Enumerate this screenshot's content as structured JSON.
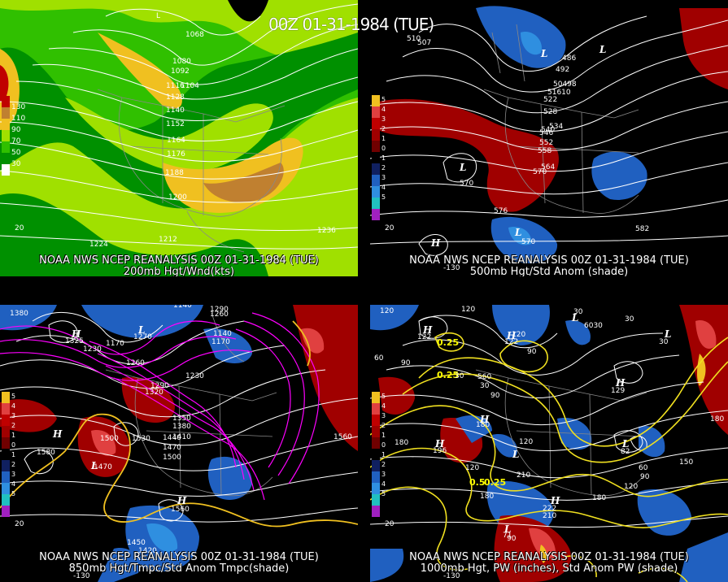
{
  "figure_title": "00Z 01-31-1984 (TUE)",
  "panels": [
    {
      "caption1": "NOAA NWS NCEP REANALYSIS 00Z 01-31-1984 (TUE)",
      "caption2": "200mb Hgt/Wnd(kts)",
      "legend": [
        "130",
        "110",
        "90",
        "70",
        "50",
        "30"
      ],
      "contours": [
        "1068",
        "1068",
        "1080",
        "1092",
        "1104",
        "1116",
        "1128",
        "1140",
        "1152",
        "1164",
        "1176",
        "1188",
        "1200",
        "1212",
        "1224",
        "1236",
        "20"
      ]
    },
    {
      "caption1": "NOAA NWS NCEP REANALYSIS 00Z 01-31-1984 (TUE)",
      "caption2": "500mb Hgt/Std Anom (shade)",
      "legend": [
        "5",
        "4",
        "3",
        "2",
        "1",
        "0",
        "1",
        "2",
        "3",
        "4",
        "5"
      ],
      "contours": [
        "510",
        "507",
        "486",
        "492",
        "498",
        "504",
        "510",
        "516",
        "522",
        "528",
        "534",
        "540",
        "546",
        "552",
        "558",
        "564",
        "570",
        "570",
        "576",
        "570",
        "582",
        "20",
        "-130"
      ]
    },
    {
      "caption1": "NOAA NWS NCEP REANALYSIS 00Z 01-31-1984 (TUE)",
      "caption2": "850mb Hgt/Tmpc/Std Anom Tmpc(shade)",
      "legend": [
        "5",
        "4",
        "3",
        "2",
        "1",
        "0",
        "1",
        "2",
        "3",
        "4",
        "5"
      ],
      "contours": [
        "1380",
        "1140",
        "1290",
        "1260",
        "1230",
        "1170",
        "1140",
        "1260",
        "1230",
        "1290",
        "1320",
        "1350",
        "1380",
        "1410",
        "1440",
        "1470",
        "1500",
        "1500",
        "1530",
        "1470",
        "1560",
        "1580",
        "1560",
        "1450",
        "1420",
        "20",
        "-130"
      ]
    },
    {
      "caption1": "NOAA NWS NCEP REANALYSIS 00Z 01-31-1984 (TUE)",
      "caption2": "1000mb Hgt, PW (inches), Std Anom PW (shade)",
      "legend": [
        "5",
        "4",
        "3",
        "2",
        "1",
        "0",
        "1",
        "2",
        "3",
        "4",
        "5"
      ],
      "contours": [
        "120",
        "120",
        "30",
        "60",
        "90",
        "0.25",
        "0.25",
        "30",
        "60",
        "90",
        "120",
        "180",
        "150",
        "180",
        "210",
        "0.5",
        "0.25",
        "180",
        "210",
        "90",
        "60",
        "120",
        "30",
        "150",
        "120",
        "180",
        "20",
        "-130"
      ]
    }
  ],
  "colors": {
    "jet_green_light": "#a0e000",
    "jet_green": "#30c000",
    "jet_green_dark": "#009000",
    "jet_yellow": "#f0c020",
    "jet_brown": "#c08030",
    "jet_red": "#c00000",
    "anom_pos": "#a00000",
    "anom_neg": "#2060c0",
    "pw_contour": "#f0e020",
    "temp_contour": "#ff00ff"
  }
}
